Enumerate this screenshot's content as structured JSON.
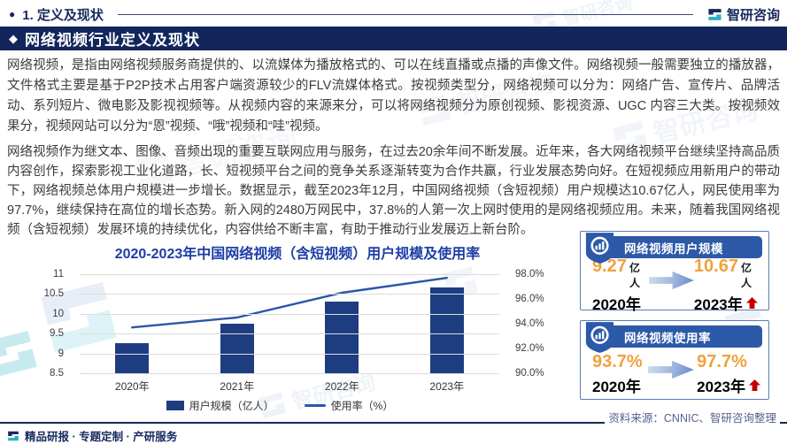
{
  "brand": {
    "logo_text": "智研咨询",
    "watermark_text": "智研咨询"
  },
  "header": {
    "bullet": "●",
    "section_label": "1. 定义及现状"
  },
  "banner": {
    "marker": "◆",
    "title": "网络视频行业定义及现状"
  },
  "paragraphs": {
    "p1": "网络视频，是指由网络视频服务商提供的、以流媒体为播放格式的、可以在线直播或点播的声像文件。网络视频一般需要独立的播放器，文件格式主要是基于P2P技术占用客户端资源较少的FLV流媒体格式。按视频类型分，网络视频可以分为：网络广告、宣传片、品牌活动、系列短片、微电影及影视视频等。从视频内容的来源来分，可以将网络视频分为原创视频、影视资源、UGC 内容三大类。按视频效果分，视频网站可以分为“恩”视频、“哦”视频和“哇”视频。",
    "p2": "网络视频作为继文本、图像、音频出现的重要互联网应用与服务，在过去20余年间不断发展。近年来，各大网络视频平台继续坚持高品质内容创作，探索影视工业化道路，长、短视频平台之间的竞争关系逐渐转变为合作共赢，行业发展态势向好。在短视频应用新用户的带动下，网络视频总体用户规模进一步增长。数据显示，截至2023年12月，中国网络视频（含短视频）用户规模达10.67亿人，网民使用率为97.7%，继续保持在高位的增长态势。新入网的2480万网民中，37.8%的人第一次上网时使用的是网络视频应用。未来，随着我国网络视频（含短视频）发展环境的持续优化，内容供给不断丰富，有助于推动行业发展迈上新台阶。"
  },
  "chart_data": {
    "type": "bar+line",
    "title": "2020-2023年中国网络视频（含短视频）用户规模及使用率",
    "categories": [
      "2020年",
      "2021年",
      "2022年",
      "2023年"
    ],
    "series": [
      {
        "name": "用户规模（亿人）",
        "type": "bar",
        "axis": "left",
        "values": [
          9.27,
          9.75,
          10.31,
          10.67
        ]
      },
      {
        "name": "使用率（%）",
        "type": "line",
        "axis": "right",
        "values": [
          93.7,
          94.5,
          96.5,
          97.7
        ]
      }
    ],
    "left_axis": {
      "min": 8.5,
      "max": 11,
      "step": 0.5,
      "tick_labels": [
        "11",
        "10.5",
        "10",
        "9.5",
        "9",
        "8.5"
      ]
    },
    "right_axis": {
      "min": 90,
      "max": 98,
      "step": 2,
      "tick_labels": [
        "98.0%",
        "96.0%",
        "94.0%",
        "92.0%",
        "90.0%"
      ]
    },
    "grid": "horizontal",
    "legend_position": "bottom",
    "colors": {
      "bar": "#1e3d80",
      "line": "#2a56a8",
      "title": "#1d3ea6"
    }
  },
  "side_panels": [
    {
      "title": "网络视频用户规模",
      "from": {
        "value": "9.27",
        "unit": "亿人",
        "year": "2020年"
      },
      "to": {
        "value": "10.67",
        "unit": "亿人",
        "year": "2023年"
      }
    },
    {
      "title": "网络视频使用率",
      "from": {
        "value": "93.7%",
        "unit": "",
        "year": "2020年"
      },
      "to": {
        "value": "97.7%",
        "unit": "",
        "year": "2023年"
      }
    }
  ],
  "footer": {
    "services": "精品研报 · 专题定制 · 产研服务",
    "source": "资料来源：CNNIC、智研咨询整理"
  },
  "colors": {
    "accent_navy": "#12265c",
    "panel_blue": "#2d59a9",
    "value_orange": "#f0a23c",
    "up_red": "#c00000",
    "logo_teal": "#2ab0c5"
  }
}
